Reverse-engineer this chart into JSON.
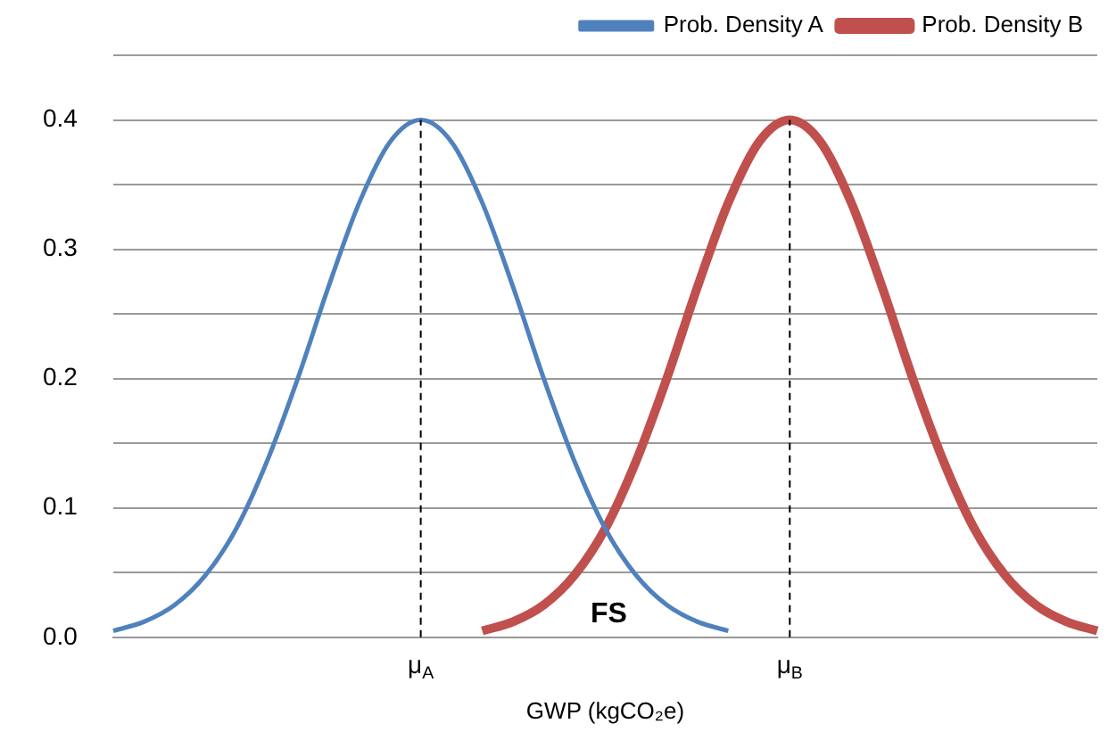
{
  "chart_data": {
    "type": "line",
    "xlabel": "GWP (kgCO₂e)",
    "categories": [
      null,
      null,
      null,
      null,
      null,
      null,
      null,
      null,
      null,
      null,
      "μ$_{A}$",
      null,
      null,
      null,
      null,
      null,
      null,
      null,
      null,
      null,
      null,
      null,
      "μ$_{B}$",
      null,
      null,
      null,
      null,
      null,
      null,
      null,
      null,
      null,
      null
    ],
    "series": [
      {
        "name": "Prob. Density A",
        "color": "#4f81bd",
        "values": [
          0.005,
          0.012,
          0.025,
          0.048,
          0.084,
          0.136,
          0.2,
          0.271,
          0.336,
          0.383,
          0.4,
          0.383,
          0.336,
          0.271,
          0.2,
          0.136,
          0.084,
          0.048,
          0.025,
          0.012,
          0.005,
          null,
          null,
          null,
          null,
          null,
          null,
          null,
          null,
          null,
          null,
          null,
          null
        ]
      },
      {
        "name": "Prob. Density B",
        "color": "#c0504d",
        "values": [
          null,
          null,
          null,
          null,
          null,
          null,
          null,
          null,
          null,
          null,
          null,
          null,
          0.005,
          0.012,
          0.025,
          0.048,
          0.084,
          0.136,
          0.2,
          0.271,
          0.336,
          0.383,
          0.4,
          0.383,
          0.336,
          0.271,
          0.2,
          0.136,
          0.084,
          0.048,
          0.025,
          0.012,
          0.005
        ]
      }
    ],
    "ylim": [
      0,
      0.45
    ],
    "yticks": [
      {
        "value": 0,
        "label": "0.0"
      },
      {
        "value": 0.05,
        "label": null
      },
      {
        "value": 0.1,
        "label": "0.1"
      },
      {
        "value": 0.15,
        "label": null
      },
      {
        "value": 0.2,
        "label": "0.2"
      },
      {
        "value": 0.25,
        "label": null
      },
      {
        "value": 0.3,
        "label": "0.3"
      },
      {
        "value": 0.35,
        "label": null
      },
      {
        "value": 0.4,
        "label": "0.4"
      },
      {
        "value": 0.45,
        "label": null
      }
    ],
    "ref_lines": [
      {
        "axis": "x",
        "value": "μ$_{A}$",
        "color": "#000000",
        "line_style": "dashed"
      },
      {
        "axis": "x",
        "value": "μ$_{B}$",
        "color": "#000000",
        "line_style": "dashed"
      }
    ],
    "annotations": [
      "FS"
    ],
    "grid": "y",
    "legend": "top right",
    "marker": "none",
    "line_style": "solid"
  }
}
